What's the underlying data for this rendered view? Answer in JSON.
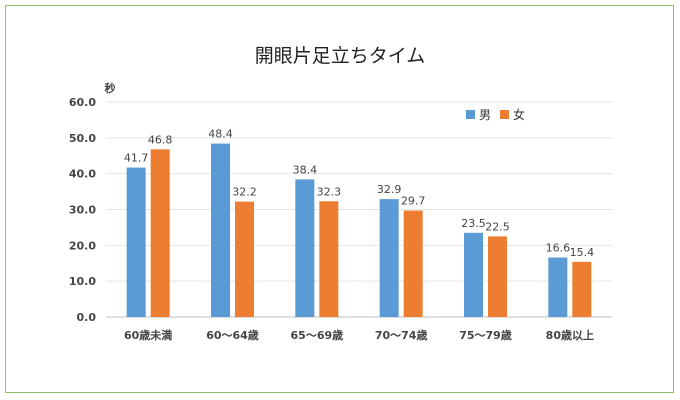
{
  "chart_data": {
    "type": "bar",
    "title": "開眼片足立ちタイム",
    "ylabel": "秒",
    "xlabel": "",
    "ylim": [
      0,
      60
    ],
    "yticks": [
      "0.0",
      "10.0",
      "20.0",
      "30.0",
      "40.0",
      "50.0",
      "60.0"
    ],
    "grid": true,
    "legend_position": "top-right",
    "categories": [
      "60歳未満",
      "60〜64歳",
      "65〜69歳",
      "70〜74歳",
      "75〜79歳",
      "80歳以上"
    ],
    "series": [
      {
        "name": "男",
        "color": "#5b9bd5",
        "values": [
          41.7,
          48.4,
          38.4,
          32.9,
          23.5,
          16.6
        ]
      },
      {
        "name": "女",
        "color": "#ed7d31",
        "values": [
          46.8,
          32.2,
          32.3,
          29.7,
          22.5,
          15.4
        ]
      }
    ]
  }
}
